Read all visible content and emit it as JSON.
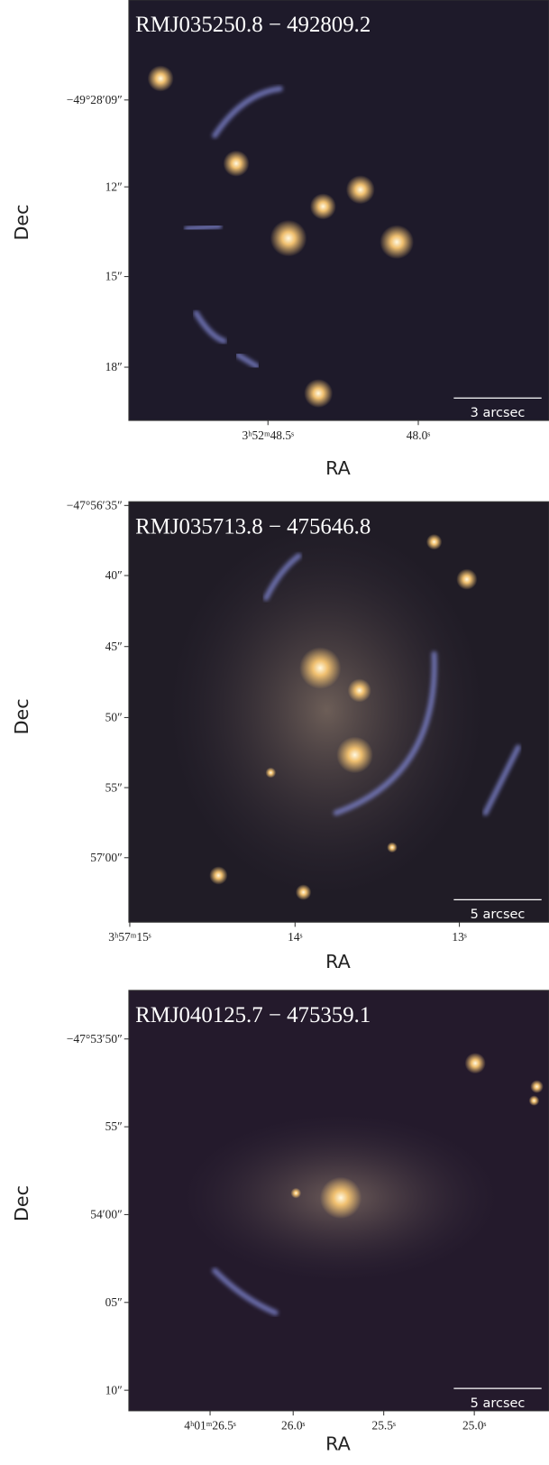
{
  "panels": [
    {
      "title": "RMJ035250.8 − 492809.2",
      "scale_label": "3 arcsec",
      "x_label": "RA",
      "y_label": "Dec",
      "xticks": [
        "3ʰ52ᵐ48.5ˢ",
        "48.0ˢ"
      ],
      "yticks": [
        "−49°28′09″",
        "12″",
        "15″",
        "18″"
      ]
    },
    {
      "title": "RMJ035713.8 − 475646.8",
      "scale_label": "5 arcsec",
      "x_label": "RA",
      "y_label": "Dec",
      "xticks": [
        "3ʰ57ᵐ15ˢ",
        "14ˢ",
        "13ˢ"
      ],
      "yticks": [
        "−47°56′35″",
        "40″",
        "45″",
        "50″",
        "55″",
        "57′00″"
      ]
    },
    {
      "title": "RMJ040125.7 − 475359.1",
      "scale_label": "5 arcsec",
      "x_label": "RA",
      "y_label": "Dec",
      "xticks": [
        "4ʰ01ᵐ26.5ˢ",
        "26.0ˢ",
        "25.5ˢ",
        "25.0ˢ"
      ],
      "yticks": [
        "−47°53′50″",
        "55″",
        "54′00″",
        "05″",
        "10″"
      ]
    }
  ]
}
